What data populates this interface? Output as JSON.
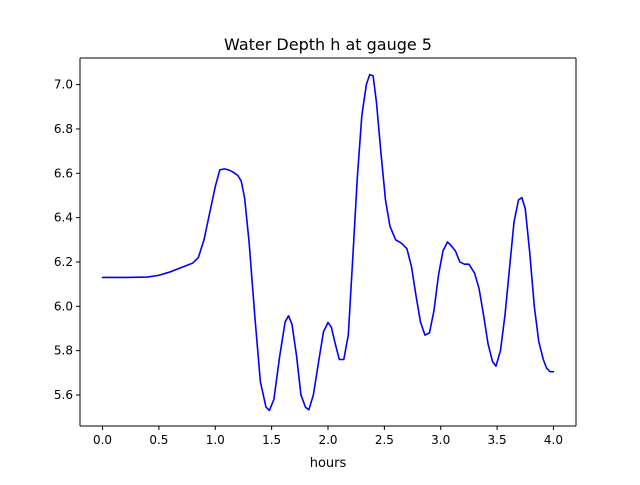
{
  "chart_data": {
    "type": "line",
    "title": "Water Depth h at gauge 5",
    "xlabel": "hours",
    "ylabel": "",
    "xlim": [
      -0.2,
      4.2
    ],
    "ylim": [
      5.46,
      7.12
    ],
    "x_ticks": [
      0.0,
      0.5,
      1.0,
      1.5,
      2.0,
      2.5,
      3.0,
      3.5,
      4.0
    ],
    "x_tick_labels": [
      "0.0",
      "0.5",
      "1.0",
      "1.5",
      "2.0",
      "2.5",
      "3.0",
      "3.5",
      "4.0"
    ],
    "y_ticks": [
      5.6,
      5.8,
      6.0,
      6.2,
      6.4,
      6.6,
      6.8,
      7.0
    ],
    "y_tick_labels": [
      "5.6",
      "5.8",
      "6.0",
      "6.2",
      "6.4",
      "6.6",
      "6.8",
      "7.0"
    ],
    "grid": false,
    "legend": "none",
    "series": [
      {
        "color": "#0000ff",
        "points": [
          [
            0.0,
            6.13
          ],
          [
            0.2,
            6.13
          ],
          [
            0.4,
            6.132
          ],
          [
            0.5,
            6.14
          ],
          [
            0.6,
            6.155
          ],
          [
            0.7,
            6.175
          ],
          [
            0.8,
            6.195
          ],
          [
            0.85,
            6.22
          ],
          [
            0.9,
            6.3
          ],
          [
            0.95,
            6.42
          ],
          [
            1.0,
            6.54
          ],
          [
            1.04,
            6.615
          ],
          [
            1.08,
            6.62
          ],
          [
            1.12,
            6.615
          ],
          [
            1.16,
            6.605
          ],
          [
            1.2,
            6.59
          ],
          [
            1.23,
            6.565
          ],
          [
            1.26,
            6.49
          ],
          [
            1.3,
            6.29
          ],
          [
            1.35,
            5.96
          ],
          [
            1.4,
            5.66
          ],
          [
            1.45,
            5.545
          ],
          [
            1.48,
            5.53
          ],
          [
            1.52,
            5.58
          ],
          [
            1.57,
            5.77
          ],
          [
            1.62,
            5.93
          ],
          [
            1.65,
            5.957
          ],
          [
            1.68,
            5.92
          ],
          [
            1.72,
            5.78
          ],
          [
            1.76,
            5.6
          ],
          [
            1.8,
            5.545
          ],
          [
            1.83,
            5.533
          ],
          [
            1.87,
            5.6
          ],
          [
            1.92,
            5.76
          ],
          [
            1.96,
            5.885
          ],
          [
            2.0,
            5.927
          ],
          [
            2.03,
            5.905
          ],
          [
            2.06,
            5.84
          ],
          [
            2.1,
            5.76
          ],
          [
            2.14,
            5.76
          ],
          [
            2.18,
            5.87
          ],
          [
            2.22,
            6.22
          ],
          [
            2.26,
            6.58
          ],
          [
            2.3,
            6.86
          ],
          [
            2.34,
            7.0
          ],
          [
            2.37,
            7.045
          ],
          [
            2.4,
            7.04
          ],
          [
            2.43,
            6.92
          ],
          [
            2.47,
            6.69
          ],
          [
            2.51,
            6.48
          ],
          [
            2.55,
            6.36
          ],
          [
            2.6,
            6.3
          ],
          [
            2.65,
            6.285
          ],
          [
            2.7,
            6.26
          ],
          [
            2.74,
            6.18
          ],
          [
            2.78,
            6.05
          ],
          [
            2.82,
            5.93
          ],
          [
            2.86,
            5.87
          ],
          [
            2.9,
            5.88
          ],
          [
            2.94,
            5.98
          ],
          [
            2.98,
            6.14
          ],
          [
            3.02,
            6.25
          ],
          [
            3.06,
            6.29
          ],
          [
            3.09,
            6.275
          ],
          [
            3.13,
            6.25
          ],
          [
            3.17,
            6.2
          ],
          [
            3.21,
            6.19
          ],
          [
            3.25,
            6.19
          ],
          [
            3.3,
            6.15
          ],
          [
            3.34,
            6.08
          ],
          [
            3.38,
            5.96
          ],
          [
            3.42,
            5.83
          ],
          [
            3.46,
            5.75
          ],
          [
            3.49,
            5.73
          ],
          [
            3.53,
            5.8
          ],
          [
            3.57,
            5.96
          ],
          [
            3.61,
            6.17
          ],
          [
            3.65,
            6.38
          ],
          [
            3.69,
            6.48
          ],
          [
            3.72,
            6.49
          ],
          [
            3.75,
            6.44
          ],
          [
            3.79,
            6.24
          ],
          [
            3.83,
            6.0
          ],
          [
            3.87,
            5.84
          ],
          [
            3.91,
            5.76
          ],
          [
            3.94,
            5.72
          ],
          [
            3.97,
            5.705
          ],
          [
            4.0,
            5.705
          ]
        ]
      }
    ]
  }
}
